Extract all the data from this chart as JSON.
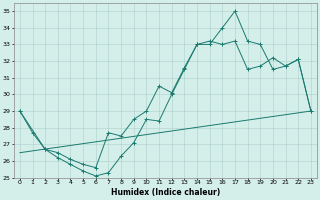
{
  "xlabel": "Humidex (Indice chaleur)",
  "xlim": [
    -0.5,
    23.5
  ],
  "ylim": [
    25,
    35.5
  ],
  "yticks": [
    25,
    26,
    27,
    28,
    29,
    30,
    31,
    32,
    33,
    34,
    35
  ],
  "xticks": [
    0,
    1,
    2,
    3,
    4,
    5,
    6,
    7,
    8,
    9,
    10,
    11,
    12,
    13,
    14,
    15,
    16,
    17,
    18,
    19,
    20,
    21,
    22,
    23
  ],
  "background_color": "#d4eeea",
  "grid_color": "#aecfca",
  "line_color": "#1a7a6e",
  "line1_x": [
    0,
    1,
    2,
    3,
    4,
    5,
    6,
    7,
    8,
    9,
    10,
    11,
    12,
    13,
    14,
    15,
    16,
    17,
    18,
    19,
    20,
    21,
    22,
    23
  ],
  "line1_y": [
    29,
    27.7,
    26.7,
    26.2,
    25.8,
    25.4,
    25.1,
    25.3,
    26.3,
    27.1,
    28.5,
    28.4,
    30.0,
    31.5,
    33.0,
    33.0,
    34.0,
    35.0,
    33.2,
    33.0,
    31.5,
    31.7,
    32.1,
    29.0
  ],
  "line2_x": [
    0,
    2,
    3,
    4,
    5,
    6,
    7,
    8,
    9,
    10,
    11,
    12,
    13,
    14,
    15,
    16,
    17,
    18,
    19,
    20,
    21,
    22,
    23
  ],
  "line2_y": [
    29,
    26.7,
    26.5,
    26.1,
    25.8,
    25.6,
    27.7,
    27.5,
    28.5,
    29.0,
    30.5,
    30.1,
    31.6,
    33.0,
    33.2,
    33.0,
    33.2,
    31.5,
    31.7,
    32.2,
    31.7,
    32.1,
    29.0
  ],
  "line3_x": [
    0,
    23
  ],
  "line3_y": [
    26.5,
    29.0
  ]
}
